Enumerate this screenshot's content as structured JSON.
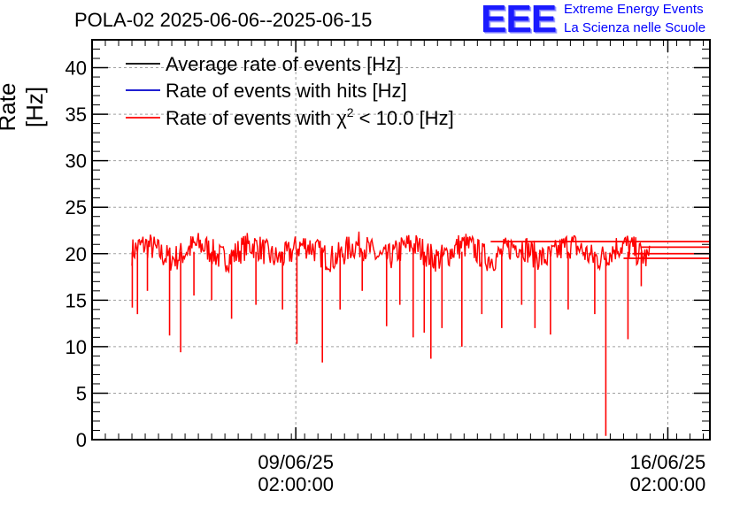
{
  "chart_data": {
    "type": "line",
    "title": "POLA-02 2025-06-06--2025-06-15",
    "ylabel": "Rate [Hz]",
    "xlabel": "",
    "ylim": [
      0,
      43
    ],
    "yticks": [
      0,
      5,
      10,
      15,
      20,
      25,
      30,
      35,
      40
    ],
    "xticks": [
      {
        "date": "09/06/25",
        "time": "02:00:00",
        "x": "2025-06-09T02:00:00"
      },
      {
        "date": "16/06/25",
        "time": "02:00:00",
        "x": "2025-06-16T02:00:00"
      }
    ],
    "xlim": [
      "2025-06-05T06:00:00",
      "2025-06-16T21:00:00"
    ],
    "grid": true,
    "legend_position": "top-left",
    "series": [
      {
        "name": "Average rate of events [Hz]",
        "color": "#000000"
      },
      {
        "name": "Rate of events with hits [Hz]",
        "color": "#0000cc"
      },
      {
        "name": "Rate of events with χ² < 10.0 [Hz]",
        "color": "#ff0000",
        "legend_main": "Rate of events with χ",
        "legend_sup": "2",
        "legend_tail": " < 10.0 [Hz]",
        "data_start": "2025-06-06T00:00:00",
        "data_end": "2025-06-15T18:00:00",
        "baseline": 20.2,
        "band": [
          18.5,
          22.5
        ],
        "dips": [
          {
            "x": "2025-06-06T00:10:00",
            "y": 14.2
          },
          {
            "x": "2025-06-06T02:30:00",
            "y": 13.5
          },
          {
            "x": "2025-06-06T07:00:00",
            "y": 16.0
          },
          {
            "x": "2025-06-06T17:00:00",
            "y": 11.2
          },
          {
            "x": "2025-06-06T22:00:00",
            "y": 9.4
          },
          {
            "x": "2025-06-07T04:00:00",
            "y": 15.5
          },
          {
            "x": "2025-06-07T12:00:00",
            "y": 15.0
          },
          {
            "x": "2025-06-07T21:00:00",
            "y": 13.0
          },
          {
            "x": "2025-06-08T08:00:00",
            "y": 14.5
          },
          {
            "x": "2025-06-08T20:00:00",
            "y": 14.0
          },
          {
            "x": "2025-06-09T02:30:00",
            "y": 10.3
          },
          {
            "x": "2025-06-09T14:00:00",
            "y": 8.3
          },
          {
            "x": "2025-06-09T22:00:00",
            "y": 14.0
          },
          {
            "x": "2025-06-10T08:00:00",
            "y": 16.0
          },
          {
            "x": "2025-06-10T19:00:00",
            "y": 12.2
          },
          {
            "x": "2025-06-11T01:00:00",
            "y": 14.5
          },
          {
            "x": "2025-06-11T07:00:00",
            "y": 11.0
          },
          {
            "x": "2025-06-11T12:00:00",
            "y": 11.5
          },
          {
            "x": "2025-06-11T15:00:00",
            "y": 8.7
          },
          {
            "x": "2025-06-11T20:00:00",
            "y": 12.0
          },
          {
            "x": "2025-06-12T05:00:00",
            "y": 10.0
          },
          {
            "x": "2025-06-12T14:00:00",
            "y": 13.5
          },
          {
            "x": "2025-06-12T23:00:00",
            "y": 12.0
          },
          {
            "x": "2025-06-13T08:00:00",
            "y": 14.5
          },
          {
            "x": "2025-06-13T14:00:00",
            "y": 12.0
          },
          {
            "x": "2025-06-13T21:00:00",
            "y": 11.3
          },
          {
            "x": "2025-06-14T05:00:00",
            "y": 14.0
          },
          {
            "x": "2025-06-14T17:00:00",
            "y": 13.5
          },
          {
            "x": "2025-06-14T22:00:00",
            "y": 0.4
          },
          {
            "x": "2025-06-15T08:00:00",
            "y": 10.8
          },
          {
            "x": "2025-06-15T14:00:00",
            "y": 16.5
          }
        ],
        "trailing_levels": [
          21.3,
          20.7,
          20.0,
          19.5
        ]
      }
    ]
  },
  "logo": {
    "mark": "EEE",
    "line1": "Extreme Energy Events",
    "line2": "La Scienza nelle Scuole"
  }
}
